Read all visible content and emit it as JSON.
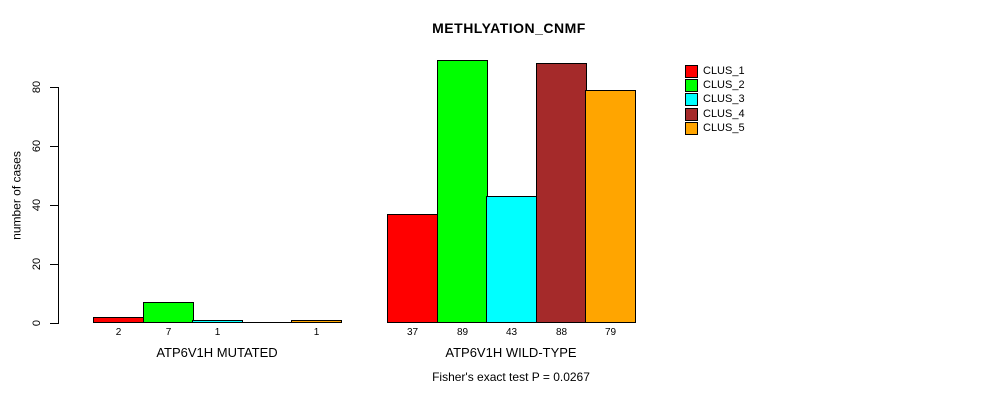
{
  "page": {
    "background_color": "#FFFFFF",
    "text_color": "#000000"
  },
  "chart_data": {
    "type": "bar",
    "title": "METHLYATION_CNMF",
    "xlabel": "",
    "ylabel": "number of cases",
    "ylim": [
      0,
      89
    ],
    "yticks": [
      0,
      20,
      40,
      60,
      80
    ],
    "grid": false,
    "legend_position": "top-right",
    "categories": [
      "ATP6V1H MUTATED",
      "ATP6V1H WILD-TYPE"
    ],
    "series": [
      {
        "name": "CLUS_1",
        "color": "#FF0000",
        "values": [
          2,
          37
        ]
      },
      {
        "name": "CLUS_2",
        "color": "#00FF00",
        "values": [
          7,
          89
        ]
      },
      {
        "name": "CLUS_3",
        "color": "#00FFFF",
        "values": [
          1,
          43
        ]
      },
      {
        "name": "CLUS_4",
        "color": "#A52A2A",
        "values": [
          0,
          88
        ]
      },
      {
        "name": "CLUS_5",
        "color": "#FFA500",
        "values": [
          1,
          79
        ]
      }
    ],
    "bar_value_labels": [
      [
        "2",
        "7",
        "1",
        "",
        "1"
      ],
      [
        "37",
        "89",
        "43",
        "88",
        "79"
      ]
    ],
    "annotation": "Fisher's exact test P = 0.0267"
  }
}
